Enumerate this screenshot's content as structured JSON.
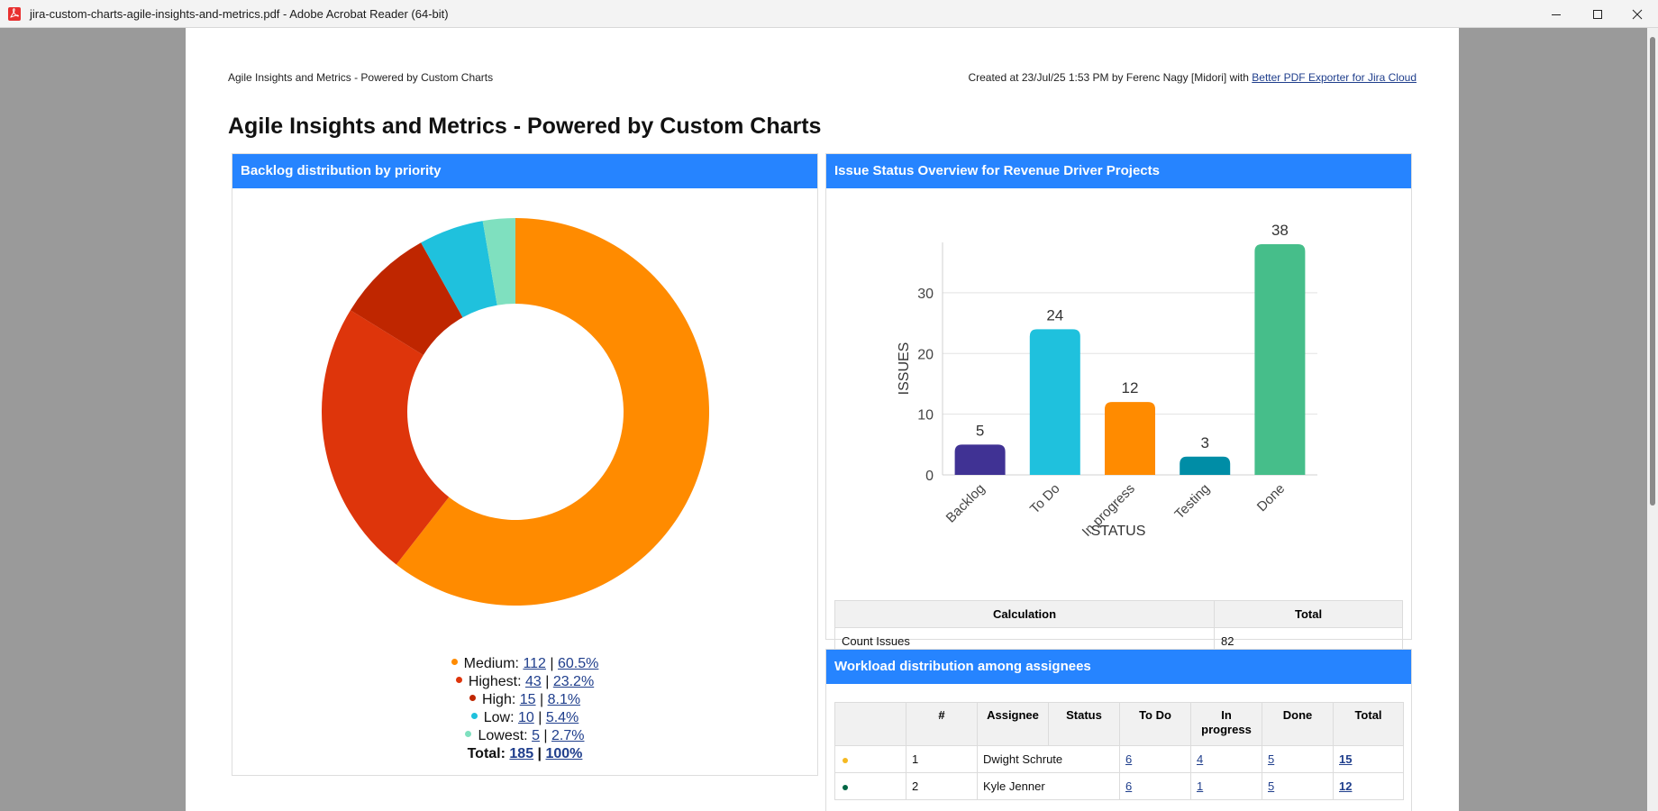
{
  "window": {
    "title": "jira-custom-charts-agile-insights-and-metrics.pdf - Adobe Acrobat Reader (64-bit)"
  },
  "header": {
    "left": "Agile Insights and Metrics - Powered by Custom Charts",
    "right_prefix": "Created at 23/Jul/25 1:53 PM by Ferenc Nagy [Midori] with ",
    "right_link": "Better PDF Exporter for Jira Cloud"
  },
  "page_title": "Agile Insights and Metrics - Powered by Custom Charts",
  "panels": {
    "backlog": {
      "title": "Backlog distribution by priority"
    },
    "status": {
      "title": "Issue Status Overview for Revenue Driver Projects"
    },
    "workload": {
      "title": "Workload distribution among assignees"
    }
  },
  "backlog_legend": [
    {
      "label": "Medium:",
      "count": "112",
      "pct": "60.5%",
      "color": "#ff8b00"
    },
    {
      "label": "Highest:",
      "count": "43",
      "pct": "23.2%",
      "color": "#de350b"
    },
    {
      "label": "High:",
      "count": "15",
      "pct": "8.1%",
      "color": "#bf2600"
    },
    {
      "label": "Low:",
      "count": "10",
      "pct": "5.4%",
      "color": "#1fc1dd"
    },
    {
      "label": "Lowest:",
      "count": "5",
      "pct": "2.7%",
      "color": "#7fe0bf"
    }
  ],
  "backlog_total": {
    "label": "Total:",
    "count": "185",
    "pct": "100%"
  },
  "calc_table": {
    "headers": [
      "Calculation",
      "Total"
    ],
    "rows": [
      [
        "Count Issues",
        "82"
      ]
    ]
  },
  "workload_table": {
    "headers": [
      "",
      "#",
      "Assignee",
      "Status",
      "To Do",
      "In progress",
      "Done",
      "Total"
    ],
    "rows": [
      {
        "marker_color": "#f5b921",
        "num": "1",
        "assignee": "Dwight Schrute",
        "todo": "6",
        "inprogress": "4",
        "done": "5",
        "total": "15"
      },
      {
        "marker_color": "#006644",
        "num": "2",
        "assignee": "Kyle Jenner",
        "todo": "6",
        "inprogress": "1",
        "done": "5",
        "total": "12"
      }
    ]
  },
  "chart_data": [
    {
      "type": "pie",
      "title": "Backlog distribution by priority",
      "categories": [
        "Medium",
        "Highest",
        "High",
        "Low",
        "Lowest"
      ],
      "values": [
        112,
        43,
        15,
        10,
        5
      ],
      "colors": [
        "#ff8b00",
        "#de350b",
        "#bf2600",
        "#1fc1dd",
        "#7fe0bf"
      ],
      "donut": true
    },
    {
      "type": "bar",
      "title": "Issue Status Overview for Revenue Driver Projects",
      "categories": [
        "Backlog",
        "To Do",
        "In progress",
        "Testing",
        "Done"
      ],
      "values": [
        5,
        24,
        12,
        3,
        38
      ],
      "colors": [
        "#403294",
        "#1fc1dd",
        "#ff8b00",
        "#008da6",
        "#46be8a"
      ],
      "xlabel": "STATUS",
      "ylabel": "ISSUES",
      "ylim": [
        0,
        38
      ],
      "yticks": [
        0,
        10,
        20,
        30
      ],
      "grid": true
    }
  ]
}
